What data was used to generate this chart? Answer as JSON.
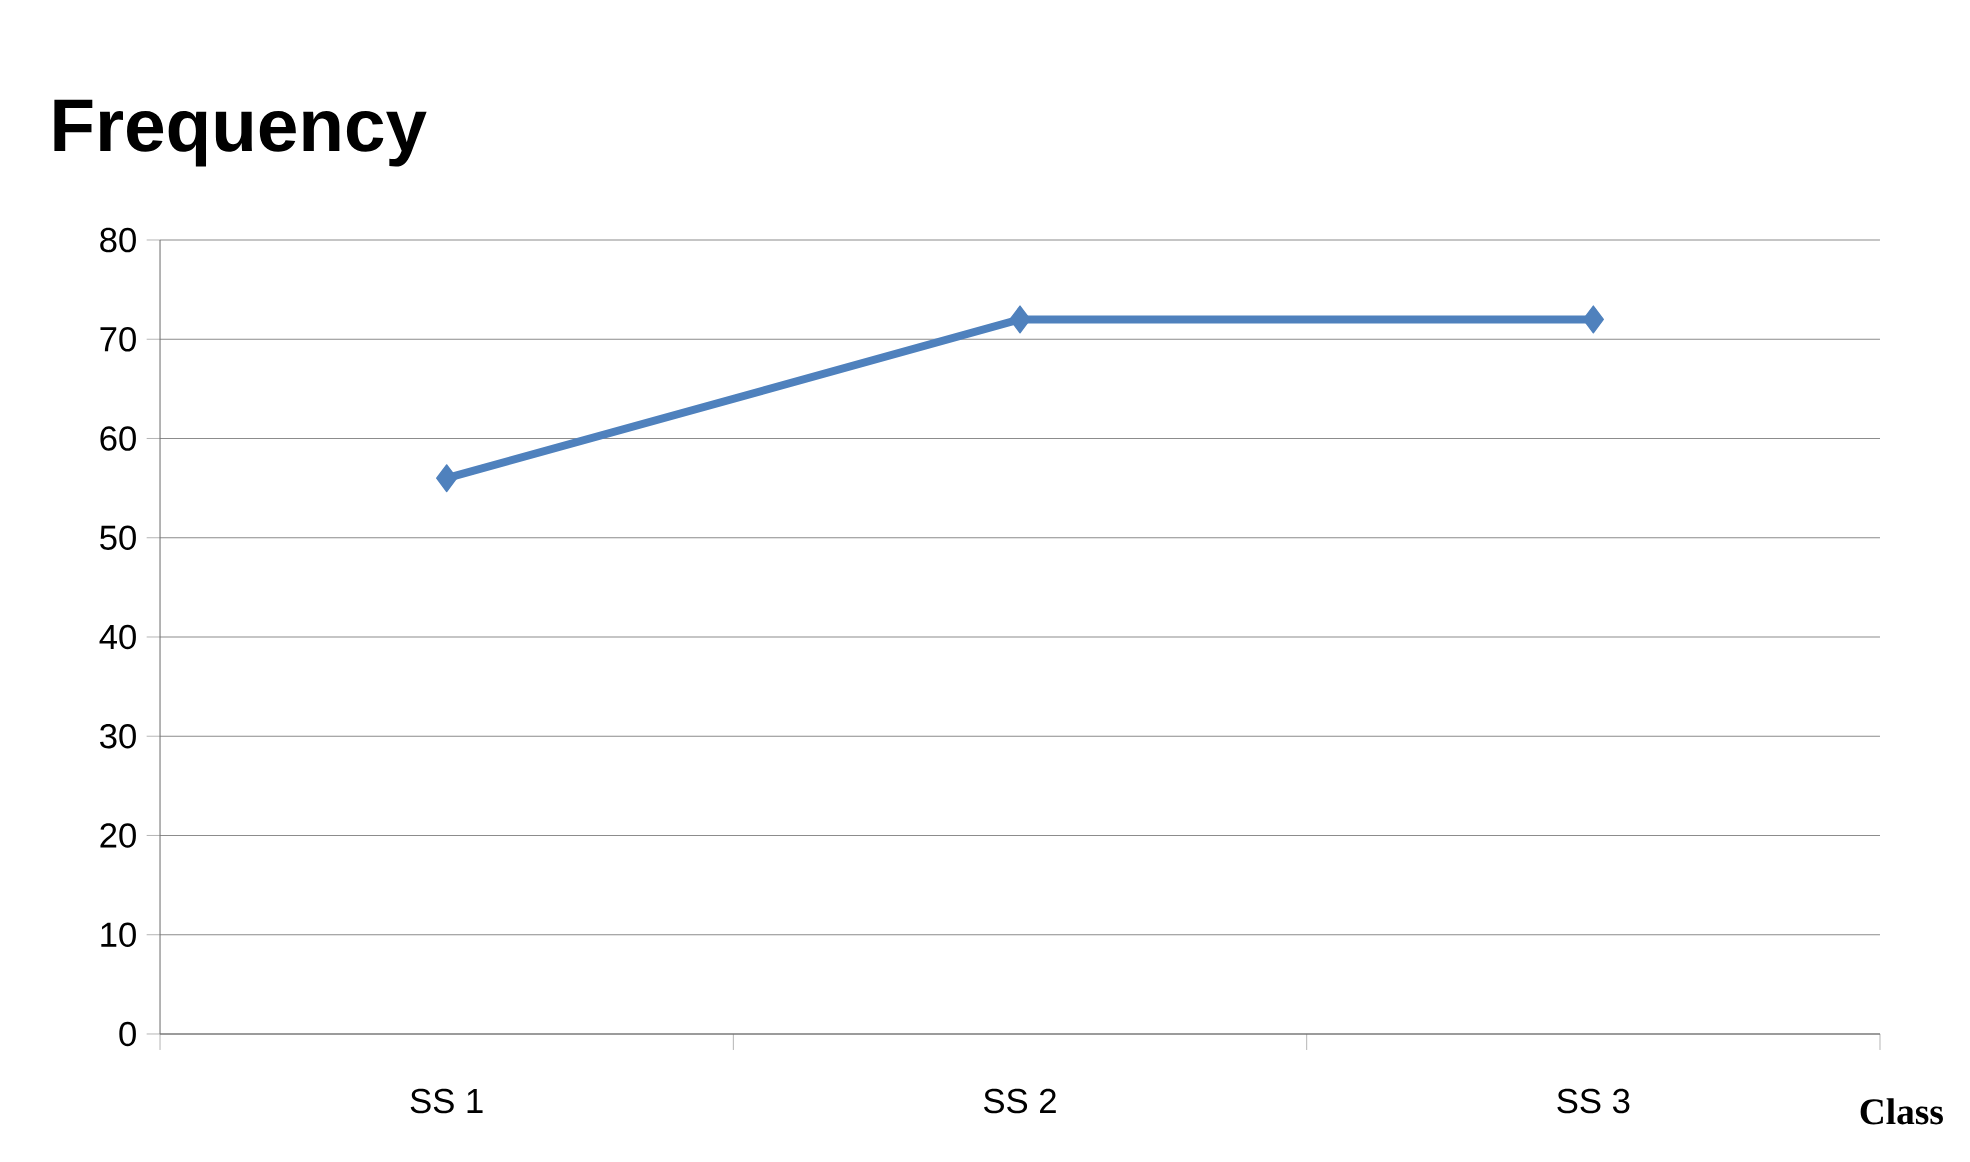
{
  "chart_data": {
    "type": "line",
    "ylabel": "Frequency",
    "xlabel": "Class",
    "categories": [
      "SS 1",
      "SS 2",
      "SS 3"
    ],
    "series": [
      {
        "color": "#4f81bd",
        "values": [
          56,
          72,
          72
        ]
      }
    ],
    "ylim": [
      0,
      80
    ],
    "yticks": [
      0,
      10,
      20,
      30,
      40,
      50,
      60,
      70,
      80
    ],
    "grid": "y",
    "marker": "diamond",
    "line_style": "solid"
  }
}
